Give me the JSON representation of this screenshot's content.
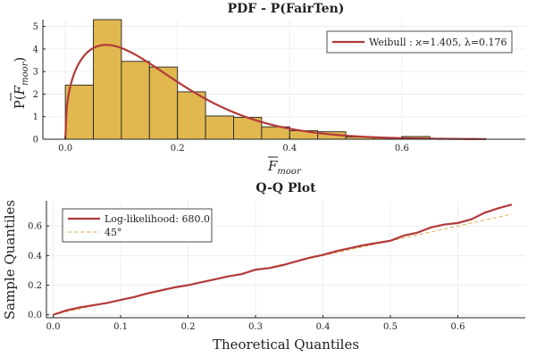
{
  "colors": {
    "bar_fill": "#E0B84F",
    "bar_stroke": "#222222",
    "weibull_line": "#B23A3A",
    "loglik_line": "#B23A3A",
    "ref_line": "#E3A542",
    "grid": "#E9E9E9",
    "axis": "#222222"
  },
  "chart_data": [
    {
      "type": "bar",
      "subtype": "histogram-with-pdf",
      "title": "PDF - P(FairTen)",
      "xlabel_base": "F",
      "xlabel_sub": "moor",
      "ylabel_prefix": "P(",
      "ylabel_base": "F",
      "ylabel_sub": "moor",
      "ylabel_suffix": ")",
      "xlim": [
        -0.04,
        0.82
      ],
      "ylim": [
        0,
        5.3
      ],
      "xticks": [
        0.0,
        0.2,
        0.4,
        0.6
      ],
      "xtick_labels": [
        "0.0",
        "0.2",
        "0.4",
        "0.6"
      ],
      "yticks": [
        0,
        1,
        2,
        3,
        4,
        5
      ],
      "ytick_labels": [
        "0",
        "1",
        "2",
        "3",
        "4",
        "5"
      ],
      "grid": true,
      "bin_width": 0.05,
      "bin_starts": [
        0.0,
        0.05,
        0.1,
        0.15,
        0.2,
        0.25,
        0.3,
        0.35,
        0.4,
        0.45,
        0.5,
        0.55,
        0.6,
        0.65,
        0.7
      ],
      "values": [
        2.4,
        5.3,
        3.45,
        3.2,
        2.1,
        1.03,
        0.97,
        0.55,
        0.38,
        0.33,
        0.1,
        0.06,
        0.12,
        0.04,
        0.02
      ],
      "series": [
        {
          "name": "Weibull : ϰ=1.405, λ=0.176",
          "kappa": 1.405,
          "lambda": 0.176,
          "x_range": [
            0.0,
            0.75
          ]
        }
      ],
      "legend_position": "top-right"
    },
    {
      "type": "line",
      "title": "Q-Q Plot",
      "xlabel": "Theoretical Quantiles",
      "ylabel": "Sample Quantiles",
      "xlim": [
        -0.01,
        0.7
      ],
      "ylim": [
        -0.02,
        0.77
      ],
      "xticks": [
        0.0,
        0.1,
        0.2,
        0.3,
        0.4,
        0.5,
        0.6
      ],
      "xtick_labels": [
        "0.0",
        "0.1",
        "0.2",
        "0.3",
        "0.4",
        "0.5",
        "0.6"
      ],
      "yticks": [
        0.0,
        0.2,
        0.4,
        0.6
      ],
      "ytick_labels": [
        "0.0",
        "0.2",
        "0.4",
        "0.6"
      ],
      "grid": true,
      "series": [
        {
          "name": "Log-likelihood: 680.0",
          "x": [
            0.0,
            0.02,
            0.04,
            0.06,
            0.08,
            0.1,
            0.12,
            0.14,
            0.16,
            0.18,
            0.2,
            0.22,
            0.24,
            0.26,
            0.28,
            0.3,
            0.32,
            0.34,
            0.36,
            0.38,
            0.4,
            0.42,
            0.44,
            0.46,
            0.48,
            0.5,
            0.52,
            0.54,
            0.56,
            0.58,
            0.6,
            0.62,
            0.64,
            0.66,
            0.68
          ],
          "y": [
            0.0,
            0.03,
            0.05,
            0.065,
            0.08,
            0.1,
            0.12,
            0.145,
            0.165,
            0.185,
            0.2,
            0.22,
            0.24,
            0.26,
            0.275,
            0.305,
            0.315,
            0.335,
            0.36,
            0.385,
            0.405,
            0.43,
            0.45,
            0.47,
            0.485,
            0.5,
            0.535,
            0.555,
            0.59,
            0.61,
            0.62,
            0.645,
            0.69,
            0.72,
            0.745
          ]
        },
        {
          "name": "45°",
          "style": "dashed",
          "x": [
            0.0,
            0.68
          ],
          "y": [
            0.0,
            0.68
          ]
        }
      ],
      "legend_position": "top-left"
    }
  ]
}
